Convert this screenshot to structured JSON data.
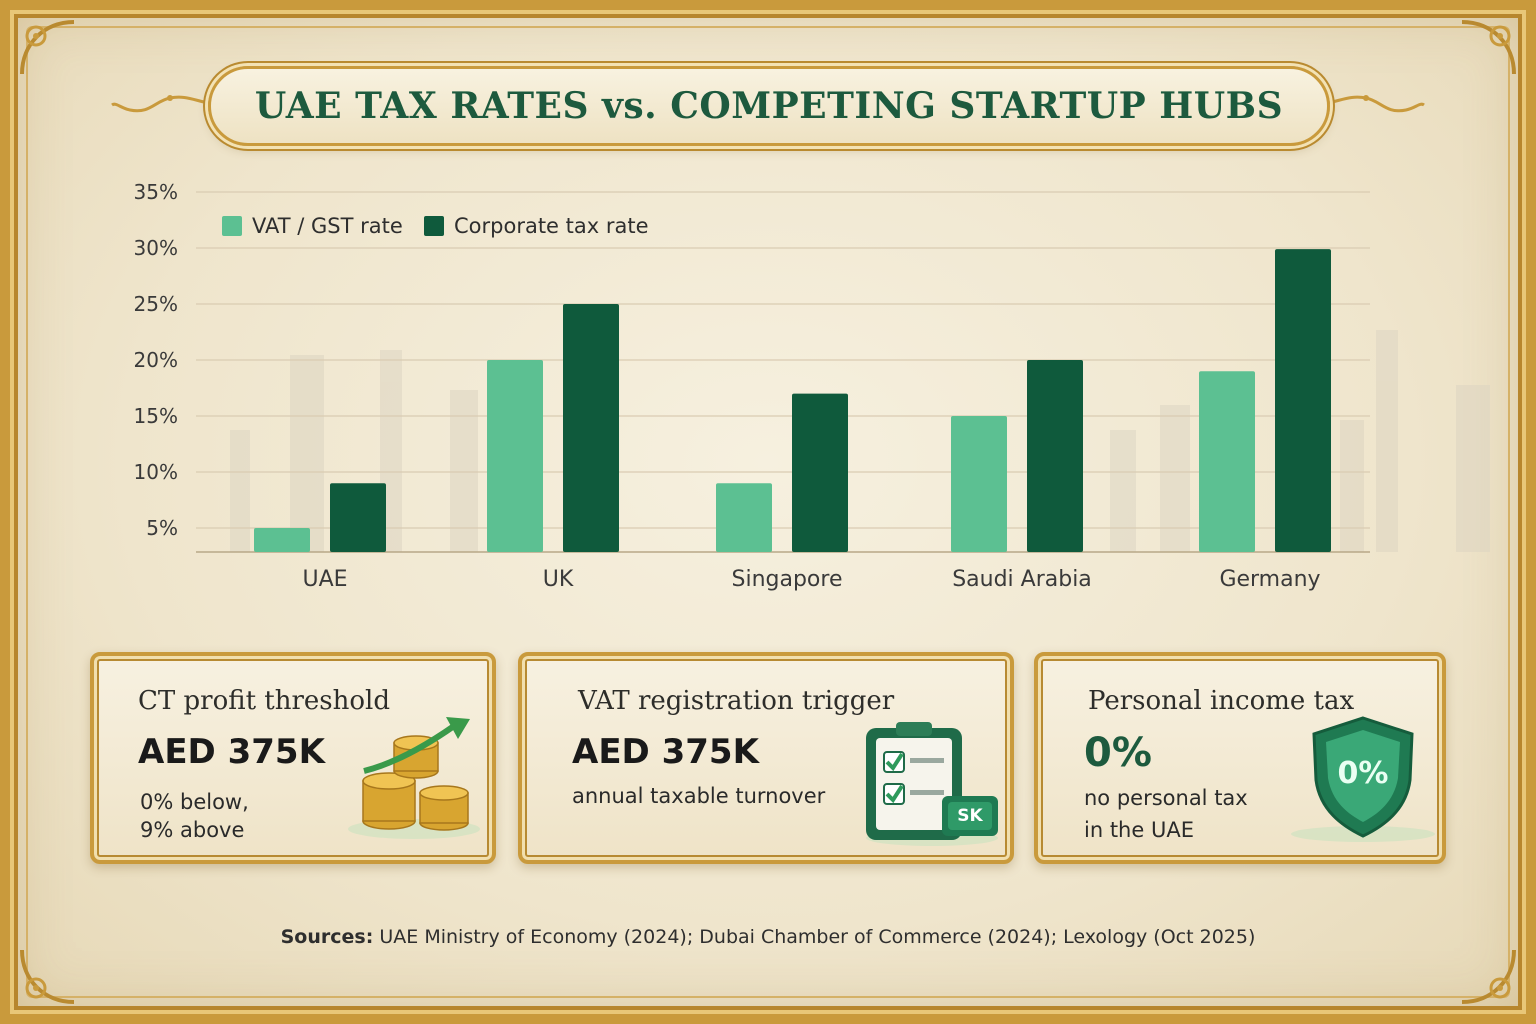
{
  "title": "UAE TAX RATES vs. COMPETING STARTUP HUBS",
  "chart_data": {
    "type": "bar",
    "categories": [
      "UAE",
      "UK",
      "Singapore",
      "Saudi Arabia",
      "Germany"
    ],
    "series": [
      {
        "name": "VAT / GST rate",
        "color": "#5cc092",
        "values": [
          5,
          20,
          9,
          15,
          19
        ]
      },
      {
        "name": "Corporate tax rate",
        "color": "#0f5a3c",
        "values": [
          9,
          25,
          17,
          20,
          29.9
        ]
      }
    ],
    "yticks": [
      "5%",
      "10%",
      "15%",
      "20%",
      "25%",
      "30%",
      "35%"
    ],
    "ylim": [
      5,
      35
    ],
    "grid": true,
    "legend_position": "top-left"
  },
  "cards": [
    {
      "title": "CT profit threshold",
      "value": "AED 375K",
      "sub1": "0% below,",
      "sub2": "9% above",
      "icon": "gold-coins-growth-icon"
    },
    {
      "title": "VAT registration trigger",
      "value": "AED 375K",
      "sub1": "annual taxable turnover",
      "icon": "checklist-clipboard-icon",
      "icon_label": "SK"
    },
    {
      "title": "Personal income tax",
      "value": "0%",
      "sub1": "no personal tax",
      "sub2": "in the UAE",
      "icon": "shield-zero-percent-icon",
      "icon_label": "0%"
    }
  ],
  "sources": {
    "label": "Sources:",
    "text": "UAE Ministry of Economy (2024); Dubai Chamber of Commerce (2024); Lexology (Oct 2025)"
  }
}
